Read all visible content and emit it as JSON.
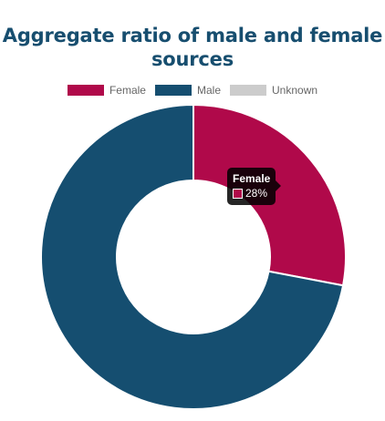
{
  "chart_data": {
    "type": "pie",
    "title": "Aggregate ratio of male and female sources",
    "title_lines": [
      "Aggregate ratio of male and female",
      "sources"
    ],
    "categories": [
      "Female",
      "Male",
      "Unknown"
    ],
    "values": [
      28,
      72,
      0
    ],
    "unit": "%",
    "colors": [
      "#b0094a",
      "#154e70",
      "#cccccc"
    ],
    "legend_position": "top",
    "tooltip": {
      "title": "Female",
      "value_text": "28%",
      "color": "#b0094a"
    }
  }
}
